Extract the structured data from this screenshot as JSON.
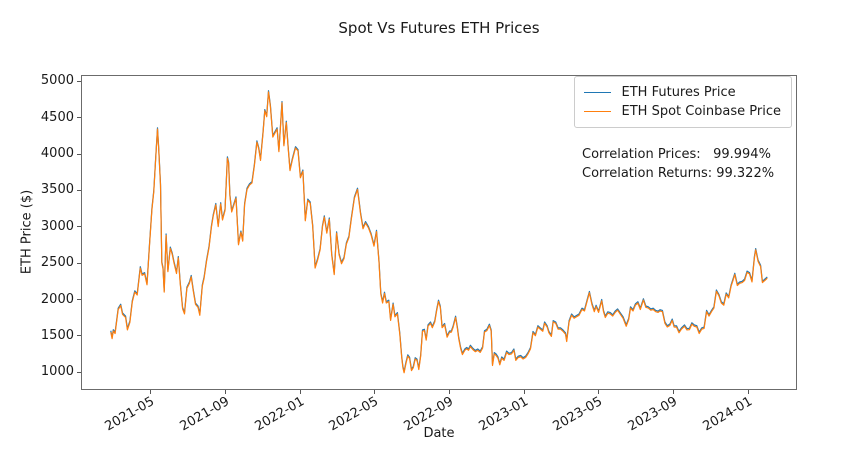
{
  "figure": {
    "background": "#ffffff"
  },
  "annotations": {
    "correlation_line1": "Correlation Prices:   99.994%",
    "correlation_line2": "Correlation Returns: 99.322%"
  },
  "legend": {
    "items": [
      {
        "label": "ETH Futures Price",
        "color": "#1f77b4"
      },
      {
        "label": "ETH Spot Coinbase Price",
        "color": "#ff7f0e"
      }
    ]
  },
  "chart_data": {
    "type": "line",
    "title": "Spot Vs Futures ETH Prices",
    "xlabel": "Date",
    "ylabel": "ETH Price ($)",
    "grid": false,
    "legend_position": "upper right",
    "x_tick_labels": [
      "2021-05",
      "2021-09",
      "2022-01",
      "2022-05",
      "2022-09",
      "2023-01",
      "2023-05",
      "2023-09",
      "2024-01"
    ],
    "y_ticks": [
      1000,
      1500,
      2000,
      2500,
      3000,
      3500,
      4000,
      4500,
      5000
    ],
    "x_range": [
      "2021-01-09",
      "2024-03-21"
    ],
    "y_range": [
      750,
      5080
    ],
    "series": [
      {
        "name": "ETH Futures Price",
        "color": "#1f77b4",
        "values_key": "points",
        "spread_usd": 18,
        "note": "visually overlaps spot; correlation 99.994%"
      },
      {
        "name": "ETH Spot Coinbase Price",
        "color": "#ff7f0e",
        "values_key": "points",
        "spread_usd": 0
      }
    ],
    "points": [
      [
        "2021-02-25",
        1560
      ],
      [
        "2021-02-27",
        1470
      ],
      [
        "2021-03-01",
        1575
      ],
      [
        "2021-03-04",
        1540
      ],
      [
        "2021-03-09",
        1870
      ],
      [
        "2021-03-13",
        1925
      ],
      [
        "2021-03-16",
        1805
      ],
      [
        "2021-03-21",
        1760
      ],
      [
        "2021-03-24",
        1590
      ],
      [
        "2021-03-28",
        1695
      ],
      [
        "2021-04-01",
        1975
      ],
      [
        "2021-04-05",
        2110
      ],
      [
        "2021-04-09",
        2070
      ],
      [
        "2021-04-14",
        2440
      ],
      [
        "2021-04-17",
        2340
      ],
      [
        "2021-04-21",
        2360
      ],
      [
        "2021-04-25",
        2210
      ],
      [
        "2021-04-29",
        2750
      ],
      [
        "2021-05-03",
        3240
      ],
      [
        "2021-05-06",
        3490
      ],
      [
        "2021-05-09",
        3920
      ],
      [
        "2021-05-12",
        4350
      ],
      [
        "2021-05-14",
        4075
      ],
      [
        "2021-05-17",
        3580
      ],
      [
        "2021-05-19",
        2510
      ],
      [
        "2021-05-21",
        2430
      ],
      [
        "2021-05-23",
        2110
      ],
      [
        "2021-05-26",
        2890
      ],
      [
        "2021-05-29",
        2390
      ],
      [
        "2021-06-02",
        2710
      ],
      [
        "2021-06-05",
        2630
      ],
      [
        "2021-06-08",
        2510
      ],
      [
        "2021-06-12",
        2365
      ],
      [
        "2021-06-15",
        2580
      ],
      [
        "2021-06-18",
        2230
      ],
      [
        "2021-06-22",
        1880
      ],
      [
        "2021-06-25",
        1810
      ],
      [
        "2021-06-29",
        2160
      ],
      [
        "2021-07-03",
        2230
      ],
      [
        "2021-07-06",
        2320
      ],
      [
        "2021-07-09",
        2140
      ],
      [
        "2021-07-13",
        1940
      ],
      [
        "2021-07-17",
        1900
      ],
      [
        "2021-07-20",
        1790
      ],
      [
        "2021-07-24",
        2190
      ],
      [
        "2021-07-27",
        2300
      ],
      [
        "2021-07-31",
        2530
      ],
      [
        "2021-08-04",
        2720
      ],
      [
        "2021-08-08",
        3010
      ],
      [
        "2021-08-11",
        3160
      ],
      [
        "2021-08-15",
        3310
      ],
      [
        "2021-08-19",
        3010
      ],
      [
        "2021-08-23",
        3320
      ],
      [
        "2021-08-26",
        3100
      ],
      [
        "2021-08-30",
        3230
      ],
      [
        "2021-09-03",
        3950
      ],
      [
        "2021-09-05",
        3880
      ],
      [
        "2021-09-07",
        3430
      ],
      [
        "2021-09-10",
        3210
      ],
      [
        "2021-09-13",
        3290
      ],
      [
        "2021-09-17",
        3400
      ],
      [
        "2021-09-21",
        2760
      ],
      [
        "2021-09-25",
        2930
      ],
      [
        "2021-09-28",
        2810
      ],
      [
        "2021-10-01",
        3310
      ],
      [
        "2021-10-05",
        3520
      ],
      [
        "2021-10-09",
        3580
      ],
      [
        "2021-10-13",
        3610
      ],
      [
        "2021-10-17",
        3850
      ],
      [
        "2021-10-21",
        4170
      ],
      [
        "2021-10-24",
        4080
      ],
      [
        "2021-10-27",
        3920
      ],
      [
        "2021-10-31",
        4290
      ],
      [
        "2021-11-03",
        4600
      ],
      [
        "2021-11-06",
        4520
      ],
      [
        "2021-11-09",
        4860
      ],
      [
        "2021-11-12",
        4660
      ],
      [
        "2021-11-16",
        4240
      ],
      [
        "2021-11-19",
        4290
      ],
      [
        "2021-11-23",
        4350
      ],
      [
        "2021-11-26",
        4040
      ],
      [
        "2021-11-29",
        4450
      ],
      [
        "2021-12-01",
        4710
      ],
      [
        "2021-12-04",
        4120
      ],
      [
        "2021-12-08",
        4440
      ],
      [
        "2021-12-11",
        4100
      ],
      [
        "2021-12-14",
        3780
      ],
      [
        "2021-12-18",
        3930
      ],
      [
        "2021-12-23",
        4090
      ],
      [
        "2021-12-27",
        4050
      ],
      [
        "2021-12-31",
        3680
      ],
      [
        "2022-01-04",
        3770
      ],
      [
        "2022-01-08",
        3090
      ],
      [
        "2022-01-12",
        3370
      ],
      [
        "2022-01-16",
        3330
      ],
      [
        "2022-01-20",
        3010
      ],
      [
        "2022-01-24",
        2440
      ],
      [
        "2022-01-28",
        2550
      ],
      [
        "2022-02-01",
        2690
      ],
      [
        "2022-02-05",
        3010
      ],
      [
        "2022-02-08",
        3140
      ],
      [
        "2022-02-12",
        2920
      ],
      [
        "2022-02-16",
        3110
      ],
      [
        "2022-02-20",
        2620
      ],
      [
        "2022-02-24",
        2350
      ],
      [
        "2022-02-28",
        2920
      ],
      [
        "2022-03-04",
        2620
      ],
      [
        "2022-03-08",
        2500
      ],
      [
        "2022-03-12",
        2570
      ],
      [
        "2022-03-16",
        2770
      ],
      [
        "2022-03-20",
        2860
      ],
      [
        "2022-03-24",
        3110
      ],
      [
        "2022-03-29",
        3400
      ],
      [
        "2022-04-03",
        3520
      ],
      [
        "2022-04-08",
        3190
      ],
      [
        "2022-04-12",
        2980
      ],
      [
        "2022-04-16",
        3060
      ],
      [
        "2022-04-21",
        2990
      ],
      [
        "2022-04-25",
        2900
      ],
      [
        "2022-04-30",
        2740
      ],
      [
        "2022-05-04",
        2940
      ],
      [
        "2022-05-08",
        2520
      ],
      [
        "2022-05-11",
        2080
      ],
      [
        "2022-05-14",
        1960
      ],
      [
        "2022-05-17",
        2090
      ],
      [
        "2022-05-20",
        1960
      ],
      [
        "2022-05-24",
        1980
      ],
      [
        "2022-05-27",
        1720
      ],
      [
        "2022-05-31",
        1940
      ],
      [
        "2022-06-03",
        1770
      ],
      [
        "2022-06-07",
        1810
      ],
      [
        "2022-06-11",
        1530
      ],
      [
        "2022-06-14",
        1210
      ],
      [
        "2022-06-16",
        1070
      ],
      [
        "2022-06-18",
        1000
      ],
      [
        "2022-06-21",
        1125
      ],
      [
        "2022-06-24",
        1230
      ],
      [
        "2022-06-27",
        1195
      ],
      [
        "2022-06-30",
        1030
      ],
      [
        "2022-07-03",
        1070
      ],
      [
        "2022-07-06",
        1190
      ],
      [
        "2022-07-09",
        1170
      ],
      [
        "2022-07-12",
        1045
      ],
      [
        "2022-07-15",
        1230
      ],
      [
        "2022-07-18",
        1570
      ],
      [
        "2022-07-21",
        1580
      ],
      [
        "2022-07-24",
        1450
      ],
      [
        "2022-07-27",
        1640
      ],
      [
        "2022-07-31",
        1680
      ],
      [
        "2022-08-03",
        1620
      ],
      [
        "2022-08-07",
        1700
      ],
      [
        "2022-08-10",
        1850
      ],
      [
        "2022-08-13",
        1980
      ],
      [
        "2022-08-16",
        1900
      ],
      [
        "2022-08-19",
        1620
      ],
      [
        "2022-08-23",
        1660
      ],
      [
        "2022-08-27",
        1490
      ],
      [
        "2022-08-31",
        1555
      ],
      [
        "2022-09-03",
        1560
      ],
      [
        "2022-09-06",
        1630
      ],
      [
        "2022-09-10",
        1760
      ],
      [
        "2022-09-13",
        1600
      ],
      [
        "2022-09-15",
        1470
      ],
      [
        "2022-09-18",
        1335
      ],
      [
        "2022-09-21",
        1250
      ],
      [
        "2022-09-25",
        1310
      ],
      [
        "2022-09-28",
        1330
      ],
      [
        "2022-10-01",
        1310
      ],
      [
        "2022-10-04",
        1360
      ],
      [
        "2022-10-08",
        1320
      ],
      [
        "2022-10-12",
        1290
      ],
      [
        "2022-10-16",
        1310
      ],
      [
        "2022-10-20",
        1280
      ],
      [
        "2022-10-24",
        1340
      ],
      [
        "2022-10-27",
        1560
      ],
      [
        "2022-10-31",
        1580
      ],
      [
        "2022-11-04",
        1650
      ],
      [
        "2022-11-07",
        1570
      ],
      [
        "2022-11-09",
        1100
      ],
      [
        "2022-11-12",
        1260
      ],
      [
        "2022-11-15",
        1240
      ],
      [
        "2022-11-18",
        1200
      ],
      [
        "2022-11-21",
        1110
      ],
      [
        "2022-11-24",
        1200
      ],
      [
        "2022-11-28",
        1170
      ],
      [
        "2022-12-02",
        1280
      ],
      [
        "2022-12-06",
        1250
      ],
      [
        "2022-12-10",
        1260
      ],
      [
        "2022-12-14",
        1310
      ],
      [
        "2022-12-17",
        1170
      ],
      [
        "2022-12-21",
        1210
      ],
      [
        "2022-12-25",
        1220
      ],
      [
        "2022-12-29",
        1190
      ],
      [
        "2023-01-02",
        1210
      ],
      [
        "2023-01-06",
        1260
      ],
      [
        "2023-01-10",
        1330
      ],
      [
        "2023-01-14",
        1550
      ],
      [
        "2023-01-18",
        1510
      ],
      [
        "2023-01-22",
        1630
      ],
      [
        "2023-01-26",
        1600
      ],
      [
        "2023-01-30",
        1570
      ],
      [
        "2023-02-02",
        1680
      ],
      [
        "2023-02-06",
        1630
      ],
      [
        "2023-02-09",
        1550
      ],
      [
        "2023-02-13",
        1500
      ],
      [
        "2023-02-16",
        1700
      ],
      [
        "2023-02-20",
        1680
      ],
      [
        "2023-02-24",
        1600
      ],
      [
        "2023-02-28",
        1600
      ],
      [
        "2023-03-04",
        1570
      ],
      [
        "2023-03-08",
        1530
      ],
      [
        "2023-03-10",
        1430
      ],
      [
        "2023-03-14",
        1700
      ],
      [
        "2023-03-18",
        1790
      ],
      [
        "2023-03-22",
        1750
      ],
      [
        "2023-03-26",
        1770
      ],
      [
        "2023-03-30",
        1790
      ],
      [
        "2023-04-04",
        1870
      ],
      [
        "2023-04-08",
        1850
      ],
      [
        "2023-04-13",
        2010
      ],
      [
        "2023-04-16",
        2100
      ],
      [
        "2023-04-20",
        1940
      ],
      [
        "2023-04-24",
        1840
      ],
      [
        "2023-04-27",
        1910
      ],
      [
        "2023-05-01",
        1830
      ],
      [
        "2023-05-06",
        1990
      ],
      [
        "2023-05-09",
        1840
      ],
      [
        "2023-05-12",
        1760
      ],
      [
        "2023-05-16",
        1820
      ],
      [
        "2023-05-20",
        1810
      ],
      [
        "2023-05-24",
        1780
      ],
      [
        "2023-05-28",
        1830
      ],
      [
        "2023-06-01",
        1860
      ],
      [
        "2023-06-05",
        1810
      ],
      [
        "2023-06-10",
        1750
      ],
      [
        "2023-06-15",
        1640
      ],
      [
        "2023-06-19",
        1730
      ],
      [
        "2023-06-22",
        1890
      ],
      [
        "2023-06-26",
        1850
      ],
      [
        "2023-06-30",
        1930
      ],
      [
        "2023-07-04",
        1960
      ],
      [
        "2023-07-08",
        1870
      ],
      [
        "2023-07-13",
        2000
      ],
      [
        "2023-07-17",
        1900
      ],
      [
        "2023-07-21",
        1890
      ],
      [
        "2023-07-25",
        1860
      ],
      [
        "2023-07-29",
        1870
      ],
      [
        "2023-08-02",
        1840
      ],
      [
        "2023-08-06",
        1830
      ],
      [
        "2023-08-09",
        1850
      ],
      [
        "2023-08-13",
        1840
      ],
      [
        "2023-08-17",
        1680
      ],
      [
        "2023-08-21",
        1630
      ],
      [
        "2023-08-25",
        1650
      ],
      [
        "2023-08-29",
        1720
      ],
      [
        "2023-09-01",
        1630
      ],
      [
        "2023-09-05",
        1628
      ],
      [
        "2023-09-09",
        1550
      ],
      [
        "2023-09-13",
        1600
      ],
      [
        "2023-09-18",
        1640
      ],
      [
        "2023-09-22",
        1590
      ],
      [
        "2023-09-26",
        1592
      ],
      [
        "2023-09-30",
        1670
      ],
      [
        "2023-10-04",
        1640
      ],
      [
        "2023-10-08",
        1630
      ],
      [
        "2023-10-12",
        1540
      ],
      [
        "2023-10-16",
        1600
      ],
      [
        "2023-10-20",
        1610
      ],
      [
        "2023-10-24",
        1840
      ],
      [
        "2023-10-28",
        1780
      ],
      [
        "2023-11-01",
        1840
      ],
      [
        "2023-11-05",
        1890
      ],
      [
        "2023-11-09",
        2120
      ],
      [
        "2023-11-13",
        2060
      ],
      [
        "2023-11-17",
        1960
      ],
      [
        "2023-11-21",
        1930
      ],
      [
        "2023-11-25",
        2080
      ],
      [
        "2023-11-29",
        2030
      ],
      [
        "2023-12-03",
        2190
      ],
      [
        "2023-12-06",
        2270
      ],
      [
        "2023-12-09",
        2350
      ],
      [
        "2023-12-13",
        2200
      ],
      [
        "2023-12-17",
        2230
      ],
      [
        "2023-12-21",
        2240
      ],
      [
        "2023-12-25",
        2270
      ],
      [
        "2023-12-29",
        2380
      ],
      [
        "2024-01-02",
        2360
      ],
      [
        "2024-01-06",
        2250
      ],
      [
        "2024-01-10",
        2580
      ],
      [
        "2024-01-12",
        2690
      ],
      [
        "2024-01-16",
        2530
      ],
      [
        "2024-01-20",
        2460
      ],
      [
        "2024-01-23",
        2240
      ],
      [
        "2024-01-27",
        2270
      ],
      [
        "2024-01-31",
        2300
      ]
    ]
  }
}
